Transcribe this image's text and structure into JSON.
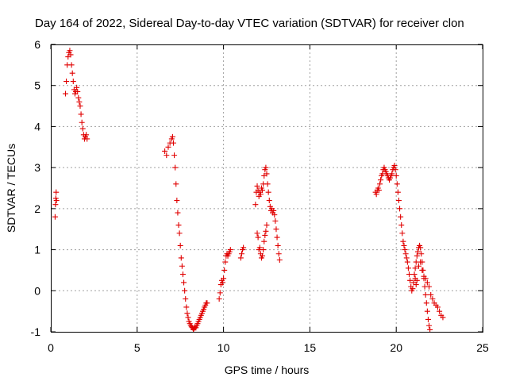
{
  "chart_data": {
    "type": "scatter",
    "title": "Day 164 of 2022, Sidereal Day-to-day VTEC variation (SDTVAR) for receiver clon",
    "xlabel": "GPS time / hours",
    "ylabel": "SDTVAR / TECUs",
    "xlim": [
      0,
      25
    ],
    "ylim": [
      -1,
      6
    ],
    "xticks": [
      0,
      5,
      10,
      15,
      20,
      25
    ],
    "yticks": [
      -1,
      0,
      1,
      2,
      3,
      4,
      5,
      6
    ],
    "grid": true,
    "marker": "+",
    "color": "#e00000",
    "series": [
      {
        "name": "SDTVAR",
        "points": [
          [
            0.25,
            1.8
          ],
          [
            0.27,
            2.1
          ],
          [
            0.29,
            2.25
          ],
          [
            0.31,
            2.4
          ],
          [
            0.33,
            2.2
          ],
          [
            0.85,
            4.8
          ],
          [
            0.9,
            5.1
          ],
          [
            0.95,
            5.5
          ],
          [
            1.0,
            5.7
          ],
          [
            1.05,
            5.8
          ],
          [
            1.1,
            5.85
          ],
          [
            1.15,
            5.75
          ],
          [
            1.2,
            5.5
          ],
          [
            1.25,
            5.3
          ],
          [
            1.3,
            5.1
          ],
          [
            1.35,
            4.9
          ],
          [
            1.4,
            4.8
          ],
          [
            1.45,
            4.85
          ],
          [
            1.5,
            4.95
          ],
          [
            1.55,
            4.85
          ],
          [
            1.6,
            4.7
          ],
          [
            1.65,
            4.6
          ],
          [
            1.7,
            4.5
          ],
          [
            1.75,
            4.3
          ],
          [
            1.8,
            4.1
          ],
          [
            1.85,
            3.95
          ],
          [
            1.9,
            3.8
          ],
          [
            1.95,
            3.7
          ],
          [
            2.0,
            3.75
          ],
          [
            2.05,
            3.8
          ],
          [
            2.1,
            3.7
          ],
          [
            6.6,
            3.4
          ],
          [
            6.7,
            3.3
          ],
          [
            6.8,
            3.5
          ],
          [
            6.9,
            3.6
          ],
          [
            7.0,
            3.7
          ],
          [
            7.05,
            3.75
          ],
          [
            7.1,
            3.6
          ],
          [
            7.15,
            3.3
          ],
          [
            7.2,
            3.0
          ],
          [
            7.25,
            2.6
          ],
          [
            7.3,
            2.2
          ],
          [
            7.35,
            1.9
          ],
          [
            7.4,
            1.6
          ],
          [
            7.45,
            1.4
          ],
          [
            7.5,
            1.1
          ],
          [
            7.55,
            0.8
          ],
          [
            7.6,
            0.6
          ],
          [
            7.65,
            0.4
          ],
          [
            7.7,
            0.2
          ],
          [
            7.75,
            0.0
          ],
          [
            7.8,
            -0.2
          ],
          [
            7.85,
            -0.4
          ],
          [
            7.9,
            -0.55
          ],
          [
            7.95,
            -0.65
          ],
          [
            8.0,
            -0.75
          ],
          [
            8.05,
            -0.8
          ],
          [
            8.1,
            -0.85
          ],
          [
            8.15,
            -0.88
          ],
          [
            8.2,
            -0.9
          ],
          [
            8.25,
            -0.95
          ],
          [
            8.3,
            -0.92
          ],
          [
            8.35,
            -0.88
          ],
          [
            8.4,
            -0.9
          ],
          [
            8.45,
            -0.85
          ],
          [
            8.5,
            -0.8
          ],
          [
            8.55,
            -0.75
          ],
          [
            8.6,
            -0.7
          ],
          [
            8.65,
            -0.65
          ],
          [
            8.7,
            -0.6
          ],
          [
            8.75,
            -0.55
          ],
          [
            8.8,
            -0.5
          ],
          [
            8.85,
            -0.45
          ],
          [
            8.9,
            -0.4
          ],
          [
            8.95,
            -0.35
          ],
          [
            9.0,
            -0.3
          ],
          [
            9.05,
            -0.3
          ],
          [
            9.75,
            -0.2
          ],
          [
            9.8,
            -0.05
          ],
          [
            9.85,
            0.15
          ],
          [
            9.9,
            0.25
          ],
          [
            9.95,
            0.2
          ],
          [
            10.0,
            0.3
          ],
          [
            10.05,
            0.5
          ],
          [
            10.1,
            0.7
          ],
          [
            10.15,
            0.85
          ],
          [
            10.2,
            0.9
          ],
          [
            10.25,
            0.85
          ],
          [
            10.3,
            0.9
          ],
          [
            10.35,
            0.95
          ],
          [
            10.4,
            1.0
          ],
          [
            11.0,
            0.8
          ],
          [
            11.05,
            0.9
          ],
          [
            11.1,
            1.0
          ],
          [
            11.15,
            1.05
          ],
          [
            11.85,
            2.1
          ],
          [
            11.9,
            2.4
          ],
          [
            11.95,
            2.55
          ],
          [
            12.0,
            2.45
          ],
          [
            12.05,
            2.3
          ],
          [
            12.1,
            2.4
          ],
          [
            12.15,
            2.35
          ],
          [
            12.2,
            2.5
          ],
          [
            12.25,
            2.45
          ],
          [
            12.3,
            2.6
          ],
          [
            12.35,
            2.8
          ],
          [
            12.4,
            2.95
          ],
          [
            12.45,
            3.0
          ],
          [
            12.5,
            2.85
          ],
          [
            12.55,
            2.6
          ],
          [
            12.6,
            2.4
          ],
          [
            12.65,
            2.2
          ],
          [
            12.7,
            2.05
          ],
          [
            12.75,
            1.95
          ],
          [
            12.8,
            2.0
          ],
          [
            12.85,
            1.9
          ],
          [
            12.9,
            1.95
          ],
          [
            12.95,
            1.85
          ],
          [
            13.0,
            1.7
          ],
          [
            13.05,
            1.5
          ],
          [
            13.1,
            1.3
          ],
          [
            13.15,
            1.1
          ],
          [
            13.2,
            0.9
          ],
          [
            13.25,
            0.75
          ],
          [
            11.95,
            1.4
          ],
          [
            12.0,
            1.3
          ],
          [
            12.05,
            1.0
          ],
          [
            12.1,
            1.05
          ],
          [
            12.15,
            0.9
          ],
          [
            12.2,
            0.8
          ],
          [
            12.25,
            0.85
          ],
          [
            12.3,
            1.0
          ],
          [
            12.35,
            1.2
          ],
          [
            12.4,
            1.35
          ],
          [
            12.45,
            1.45
          ],
          [
            12.5,
            1.6
          ],
          [
            18.8,
            2.4
          ],
          [
            18.85,
            2.35
          ],
          [
            18.9,
            2.45
          ],
          [
            18.95,
            2.5
          ],
          [
            19.0,
            2.45
          ],
          [
            19.05,
            2.6
          ],
          [
            19.1,
            2.7
          ],
          [
            19.15,
            2.8
          ],
          [
            19.2,
            2.85
          ],
          [
            19.25,
            2.95
          ],
          [
            19.3,
            3.0
          ],
          [
            19.35,
            2.95
          ],
          [
            19.4,
            2.9
          ],
          [
            19.45,
            2.85
          ],
          [
            19.5,
            2.8
          ],
          [
            19.55,
            2.75
          ],
          [
            19.6,
            2.7
          ],
          [
            19.65,
            2.75
          ],
          [
            19.7,
            2.8
          ],
          [
            19.75,
            2.85
          ],
          [
            19.8,
            2.95
          ],
          [
            19.85,
            3.0
          ],
          [
            19.9,
            3.05
          ],
          [
            19.95,
            2.95
          ],
          [
            20.0,
            2.8
          ],
          [
            20.05,
            2.6
          ],
          [
            20.1,
            2.4
          ],
          [
            20.15,
            2.2
          ],
          [
            20.2,
            2.0
          ],
          [
            20.25,
            1.8
          ],
          [
            20.3,
            1.6
          ],
          [
            20.35,
            1.4
          ],
          [
            20.4,
            1.2
          ],
          [
            20.45,
            1.1
          ],
          [
            20.5,
            1.0
          ],
          [
            20.55,
            0.9
          ],
          [
            20.6,
            0.8
          ],
          [
            20.65,
            0.7
          ],
          [
            20.7,
            0.55
          ],
          [
            20.75,
            0.4
          ],
          [
            20.8,
            0.25
          ],
          [
            20.85,
            0.1
          ],
          [
            20.9,
            0.0
          ],
          [
            20.95,
            0.05
          ],
          [
            21.0,
            0.2
          ],
          [
            21.05,
            0.4
          ],
          [
            21.1,
            0.55
          ],
          [
            21.15,
            0.7
          ],
          [
            21.2,
            0.85
          ],
          [
            21.25,
            0.95
          ],
          [
            21.3,
            1.05
          ],
          [
            21.35,
            1.1
          ],
          [
            21.4,
            1.05
          ],
          [
            21.45,
            0.9
          ],
          [
            21.5,
            0.7
          ],
          [
            21.55,
            0.5
          ],
          [
            21.6,
            0.3
          ],
          [
            21.65,
            0.1
          ],
          [
            21.7,
            -0.1
          ],
          [
            21.75,
            -0.3
          ],
          [
            21.8,
            -0.5
          ],
          [
            21.85,
            -0.7
          ],
          [
            21.9,
            -0.85
          ],
          [
            21.95,
            -0.95
          ],
          [
            21.1,
            0.3
          ],
          [
            21.15,
            0.15
          ],
          [
            21.2,
            0.25
          ],
          [
            21.3,
            0.6
          ],
          [
            21.4,
            0.7
          ],
          [
            21.5,
            0.5
          ],
          [
            21.6,
            0.35
          ],
          [
            21.7,
            0.3
          ],
          [
            21.8,
            0.2
          ],
          [
            21.9,
            0.1
          ],
          [
            22.0,
            -0.1
          ],
          [
            22.1,
            -0.2
          ],
          [
            22.2,
            -0.3
          ],
          [
            22.3,
            -0.35
          ],
          [
            22.4,
            -0.4
          ],
          [
            22.5,
            -0.5
          ],
          [
            22.6,
            -0.6
          ],
          [
            22.7,
            -0.65
          ]
        ]
      }
    ]
  }
}
